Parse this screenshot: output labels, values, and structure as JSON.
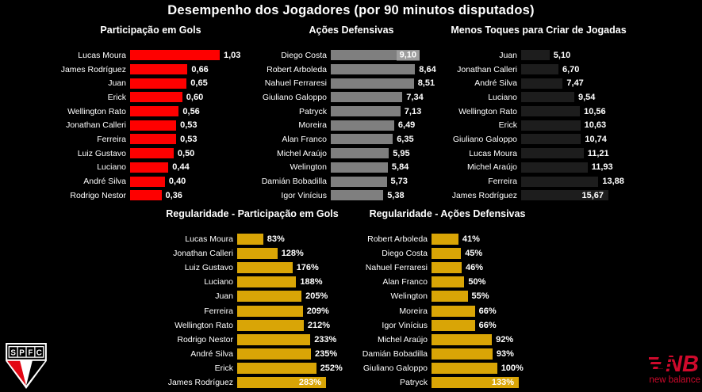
{
  "page": {
    "title": "Desempenho dos Jogadores (por 90 minutos disputados)"
  },
  "colors": {
    "background": "#000000",
    "text": "#ffffff",
    "red_bar": "#fe0000",
    "gray_bar": "#7f7f7f",
    "dark_bar": "#1d1d1d",
    "gold_bar": "#d9a506",
    "inside_label_box": "#9e9e9e",
    "spfc_red": "#e30613",
    "nb_red": "#cf0a2c"
  },
  "branding": {
    "club_badge_letters": [
      "S",
      "P",
      "F",
      "C"
    ],
    "sponsor_monogram": "NB",
    "sponsor_wordmark": "new balance"
  },
  "chart_data": [
    {
      "id": "participacao-em-gols",
      "type": "bar",
      "orientation": "horizontal",
      "title": "Participação em Gols",
      "bar_color": "#fe0000",
      "value_format": "decimal-comma",
      "xlim": [
        0,
        1.2
      ],
      "categories": [
        "Lucas Moura",
        "James Rodríguez",
        "Juan",
        "Erick",
        "Wellington Rato",
        "Jonathan Calleri",
        "Ferreira",
        "Luiz Gustavo",
        "Luciano",
        "André Silva",
        "Rodrigo Nestor"
      ],
      "values": [
        1.03,
        0.66,
        0.65,
        0.6,
        0.56,
        0.53,
        0.53,
        0.5,
        0.44,
        0.4,
        0.36
      ],
      "value_labels": [
        "1,03",
        "0,66",
        "0,65",
        "0,60",
        "0,56",
        "0,53",
        "0,53",
        "0,50",
        "0,44",
        "0,40",
        "0,36"
      ]
    },
    {
      "id": "acoes-defensivas",
      "type": "bar",
      "orientation": "horizontal",
      "title": "Ações Defensivas",
      "bar_color": "#7f7f7f",
      "value_format": "decimal-comma",
      "xlim": [
        0,
        9.5
      ],
      "categories": [
        "Diego Costa",
        "Robert Arboleda",
        "Nahuel Ferraresi",
        "Giuliano Galoppo",
        "Patryck",
        "Moreira",
        "Alan Franco",
        "Michel Araújo",
        "Welington",
        "Damián Bobadilla",
        "Igor Vinícius"
      ],
      "values": [
        9.1,
        8.64,
        8.51,
        7.34,
        7.13,
        6.49,
        6.35,
        5.95,
        5.84,
        5.73,
        5.38
      ],
      "value_labels": [
        "9,10",
        "8,64",
        "8,51",
        "7,34",
        "7,13",
        "6,49",
        "6,35",
        "5,95",
        "5,84",
        "5,73",
        "5,38"
      ]
    },
    {
      "id": "menos-toques-para-criar-jogadas",
      "type": "bar",
      "orientation": "horizontal",
      "title": "Menos Toques para Criar de Jogadas",
      "bar_color": "#1d1d1d",
      "value_format": "decimal-comma",
      "xlim": [
        0,
        16
      ],
      "categories": [
        "Juan",
        "Jonathan Calleri",
        "André Silva",
        "Luciano",
        "Wellington Rato",
        "Erick",
        "Giuliano Galoppo",
        "Lucas Moura",
        "Michel Araújo",
        "Ferreira",
        "James Rodríguez"
      ],
      "values": [
        5.1,
        6.7,
        7.47,
        9.54,
        10.56,
        10.63,
        10.74,
        11.21,
        11.93,
        13.88,
        15.67
      ],
      "value_labels": [
        "5,10",
        "6,70",
        "7,47",
        "9,54",
        "10,56",
        "10,63",
        "10,74",
        "11,21",
        "11,93",
        "13,88",
        "15,67"
      ]
    },
    {
      "id": "regularidade-participacao-em-gols",
      "type": "bar",
      "orientation": "horizontal",
      "title": "Regularidade - Participação em Gols",
      "bar_color": "#d9a506",
      "value_format": "percent",
      "xlim": [
        0,
        290
      ],
      "categories": [
        "Lucas Moura",
        "Jonathan Calleri",
        "Luiz Gustavo",
        "Luciano",
        "Juan",
        "Ferreira",
        "Wellington Rato",
        "Rodrigo Nestor",
        "André Silva",
        "Erick",
        "James Rodríguez"
      ],
      "values": [
        83,
        128,
        176,
        188,
        205,
        209,
        212,
        233,
        235,
        252,
        283
      ],
      "value_labels": [
        "83%",
        "128%",
        "176%",
        "188%",
        "205%",
        "209%",
        "212%",
        "233%",
        "235%",
        "252%",
        "283%"
      ]
    },
    {
      "id": "regularidade-acoes-defensivas",
      "type": "bar",
      "orientation": "horizontal",
      "title": "Regularidade - Ações Defensivas",
      "bar_color": "#d9a506",
      "value_format": "percent",
      "xlim": [
        0,
        140
      ],
      "categories": [
        "Robert Arboleda",
        "Diego Costa",
        "Nahuel Ferraresi",
        "Alan Franco",
        "Welington",
        "Moreira",
        "Igor Vinícius",
        "Michel Araújo",
        "Damián Bobadilla",
        "Giuliano Galoppo",
        "Patryck"
      ],
      "values": [
        41,
        45,
        46,
        50,
        55,
        66,
        66,
        92,
        93,
        100,
        133
      ],
      "value_labels": [
        "41%",
        "45%",
        "46%",
        "50%",
        "55%",
        "66%",
        "66%",
        "92%",
        "93%",
        "100%",
        "133%"
      ]
    }
  ]
}
